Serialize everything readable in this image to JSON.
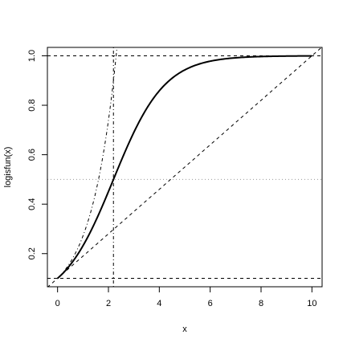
{
  "chart_data": {
    "type": "line",
    "title": "",
    "xlabel": "x",
    "ylabel": "logisfun(x)",
    "xlim": [
      -0.4,
      10.4
    ],
    "ylim": [
      0.066,
      1.034
    ],
    "xticks": [
      0,
      2,
      4,
      6,
      8,
      10
    ],
    "xtick_labels": [
      "0",
      "2",
      "4",
      "6",
      "8",
      "10"
    ],
    "yticks": [
      0.2,
      0.4,
      0.6,
      0.8,
      1.0
    ],
    "ytick_labels": [
      "0.2",
      "0.4",
      "0.6",
      "0.8",
      "1.0"
    ],
    "grid": false,
    "logistic": {
      "K": 1.0,
      "P0": 0.1,
      "r": 1.0
    },
    "series": [
      {
        "kind": "logistic-curve",
        "line_style": "solid",
        "line_width": 2,
        "x_range": [
          0,
          10
        ]
      },
      {
        "kind": "exponential-curve",
        "line_style": "dotdash",
        "line_width": 1,
        "x_range": [
          0,
          2.4
        ]
      },
      {
        "kind": "line",
        "line_style": "dashed",
        "line_width": 1,
        "x": [
          -0.4,
          10.4
        ],
        "y": [
          0.064,
          1.036
        ]
      }
    ],
    "hlines": [
      {
        "y": 1.0,
        "line_style": "dashed",
        "color": "#000000"
      },
      {
        "y": 0.1,
        "line_style": "dashed",
        "color": "#000000"
      },
      {
        "y": 0.5,
        "line_style": "dotted",
        "color": "#999999"
      }
    ],
    "vlines": [
      {
        "x": 2.197,
        "line_style": "dotdash",
        "color": "#000000"
      }
    ]
  }
}
